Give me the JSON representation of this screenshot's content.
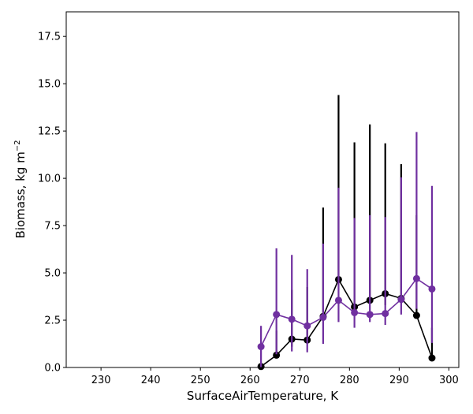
{
  "chart_data": {
    "type": "line",
    "xlabel": "SurfaceAirTemperature,  K",
    "ylabel_main": "Biomass,  kg m",
    "ylabel_sup": "−2",
    "xlim": [
      223,
      302
    ],
    "ylim": [
      0,
      18.8
    ],
    "xticks": [
      230,
      240,
      250,
      260,
      270,
      280,
      290,
      300
    ],
    "yticks": [
      0.0,
      2.5,
      5.0,
      7.5,
      10.0,
      12.5,
      15.0,
      17.5
    ],
    "ytick_labels": [
      "0.0",
      "2.5",
      "5.0",
      "7.5",
      "10.0",
      "12.5",
      "15.0",
      "17.5"
    ],
    "grid": false,
    "series": [
      {
        "color": "#000000",
        "x": [
          262.2,
          265.3,
          268.4,
          271.5,
          274.7,
          277.8,
          281.0,
          284.1,
          287.2,
          290.4,
          293.5,
          296.6
        ],
        "y": [
          0.05,
          0.65,
          1.5,
          1.45,
          2.7,
          4.65,
          3.2,
          3.55,
          3.9,
          3.65,
          2.75,
          0.5
        ],
        "err_low": [
          0.0,
          0.1,
          0.4,
          0.0,
          0.0,
          0.0,
          0.0,
          0.0,
          0.6,
          0.25,
          0.0,
          0.0
        ],
        "err_high": [
          0.1,
          1.3,
          2.6,
          2.8,
          5.75,
          9.75,
          8.7,
          9.3,
          7.95,
          7.1,
          5.3,
          1.6
        ]
      },
      {
        "color": "#7030a0",
        "x": [
          262.2,
          265.3,
          268.4,
          271.5,
          274.7,
          277.8,
          281.0,
          284.1,
          287.2,
          290.4,
          293.5,
          296.6
        ],
        "y": [
          1.1,
          2.8,
          2.55,
          2.2,
          2.65,
          3.55,
          2.9,
          2.8,
          2.85,
          3.6,
          4.7,
          4.15
        ],
        "err_low": [
          1.1,
          2.1,
          1.7,
          1.4,
          1.4,
          1.15,
          0.8,
          0.4,
          0.6,
          0.8,
          1.6,
          2.85
        ],
        "err_high": [
          1.1,
          3.5,
          3.4,
          3.0,
          3.9,
          5.95,
          5.0,
          5.25,
          5.1,
          6.45,
          7.75,
          5.45
        ]
      }
    ]
  }
}
